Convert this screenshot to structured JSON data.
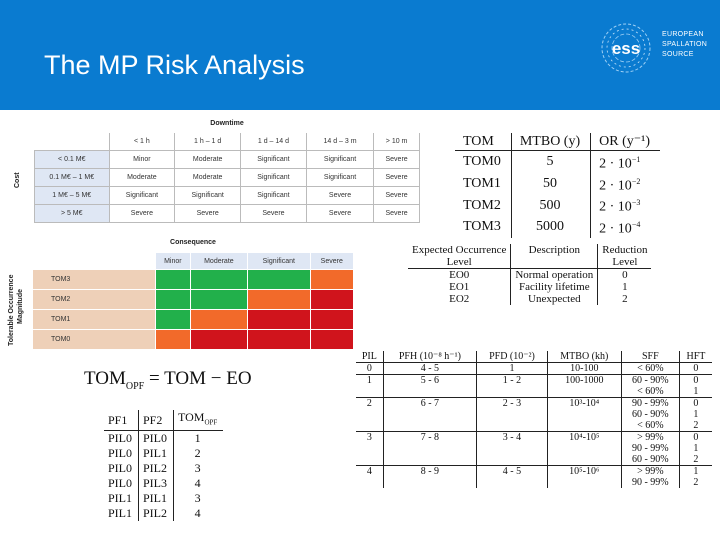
{
  "slide": {
    "title": "The MP Risk Analysis"
  },
  "logo": {
    "mark": "ess",
    "lines": [
      "EUROPEAN",
      "SPALLATION",
      "SOURCE"
    ]
  },
  "risk_matrix": {
    "col_header": "Downtime",
    "row_header": "Cost",
    "columns": [
      "< 1 h",
      "1 h – 1 d",
      "1 d – 14 d",
      "14 d – 3 m",
      "> 10 m"
    ],
    "rows": [
      {
        "label": "< 0.1 M€",
        "cells": [
          "Minor",
          "Moderate",
          "Significant",
          "Significant",
          "Severe"
        ]
      },
      {
        "label": "0.1 M€ – 1 M€",
        "cells": [
          "Moderate",
          "Moderate",
          "Significant",
          "Significant",
          "Severe"
        ]
      },
      {
        "label": "1 M€ – 5 M€",
        "cells": [
          "Significant",
          "Significant",
          "Significant",
          "Severe",
          "Severe"
        ]
      },
      {
        "label": "> 5 M€",
        "cells": [
          "Severe",
          "Severe",
          "Severe",
          "Severe",
          "Severe"
        ]
      }
    ]
  },
  "consequence_matrix": {
    "col_header": "Consequence",
    "row_header_1": "Tolerable Occurrence",
    "row_header_2": "Magnitude",
    "columns": [
      "Minor",
      "Moderate",
      "Significant",
      "Severe"
    ],
    "rows": [
      {
        "label": "TOM3",
        "colors": [
          "#22b04b",
          "#22b04b",
          "#22b04b",
          "#f26a2a"
        ]
      },
      {
        "label": "TOM2",
        "colors": [
          "#22b04b",
          "#22b04b",
          "#f26a2a",
          "#d0141c"
        ]
      },
      {
        "label": "TOM1",
        "colors": [
          "#22b04b",
          "#f26a2a",
          "#d0141c",
          "#d0141c"
        ]
      },
      {
        "label": "TOM0",
        "colors": [
          "#f26a2a",
          "#d0141c",
          "#d0141c",
          "#d0141c"
        ]
      }
    ]
  },
  "formula": {
    "lhs": "TOM",
    "lhs_sub": "OPF",
    "rhs": "= TOM − EO"
  },
  "pf_table": {
    "headers": [
      "PF1",
      "PF2",
      "TOM"
    ],
    "header_sub": "OPF",
    "rows": [
      [
        "PIL0",
        "PIL0",
        "1"
      ],
      [
        "PIL0",
        "PIL1",
        "2"
      ],
      [
        "PIL0",
        "PIL2",
        "3"
      ],
      [
        "PIL0",
        "PIL3",
        "4"
      ],
      [
        "PIL1",
        "PIL1",
        "3"
      ],
      [
        "PIL1",
        "PIL2",
        "4"
      ]
    ]
  },
  "tom_table": {
    "headers": [
      "TOM",
      "MTBO (y)",
      "OR (y⁻¹)"
    ],
    "rows": [
      {
        "tom": "TOM0",
        "mtbo": "5",
        "or_base": "2 · 10",
        "or_exp": "−1"
      },
      {
        "tom": "TOM1",
        "mtbo": "50",
        "or_base": "2 · 10",
        "or_exp": "−2"
      },
      {
        "tom": "TOM2",
        "mtbo": "500",
        "or_base": "2 · 10",
        "or_exp": "−3"
      },
      {
        "tom": "TOM3",
        "mtbo": "5000",
        "or_base": "2 · 10",
        "or_exp": "−4"
      }
    ]
  },
  "eo_table": {
    "headers_1": [
      "Expected Occurrence",
      "Description",
      "Reduction"
    ],
    "headers_2": [
      "Level",
      "",
      "Level"
    ],
    "rows": [
      [
        "EO0",
        "Normal operation",
        "0"
      ],
      [
        "EO1",
        "Facility lifetime",
        "1"
      ],
      [
        "EO2",
        "Unexpected",
        "2"
      ]
    ]
  },
  "pil_table": {
    "headers": [
      "PIL",
      "PFH (10⁻⁸ h⁻¹)",
      "PFD (10⁻²)",
      "MTBO (kh)",
      "SFF",
      "HFT"
    ],
    "rows": [
      [
        "0",
        "4 - 5",
        "1",
        "10-100",
        "< 60%",
        "0"
      ],
      [
        "1",
        "5 - 6",
        "1 - 2",
        "100-1000",
        "60 - 90%",
        "0"
      ],
      [
        "",
        "",
        "",
        "",
        "< 60%",
        "1"
      ],
      [
        "2",
        "6 - 7",
        "2 - 3",
        "10³-10⁴",
        "90 - 99%",
        "0"
      ],
      [
        "",
        "",
        "",
        "",
        "60 - 90%",
        "1"
      ],
      [
        "",
        "",
        "",
        "",
        "< 60%",
        "2"
      ],
      [
        "3",
        "7 - 8",
        "3 - 4",
        "10⁴-10⁵",
        "> 99%",
        "0"
      ],
      [
        "",
        "",
        "",
        "",
        "90 - 99%",
        "1"
      ],
      [
        "",
        "",
        "",
        "",
        "60 - 90%",
        "2"
      ],
      [
        "4",
        "8 - 9",
        "4 - 5",
        "10⁵-10⁶",
        "> 99%",
        "1"
      ],
      [
        "",
        "",
        "",
        "",
        "90 - 99%",
        "2"
      ]
    ]
  }
}
